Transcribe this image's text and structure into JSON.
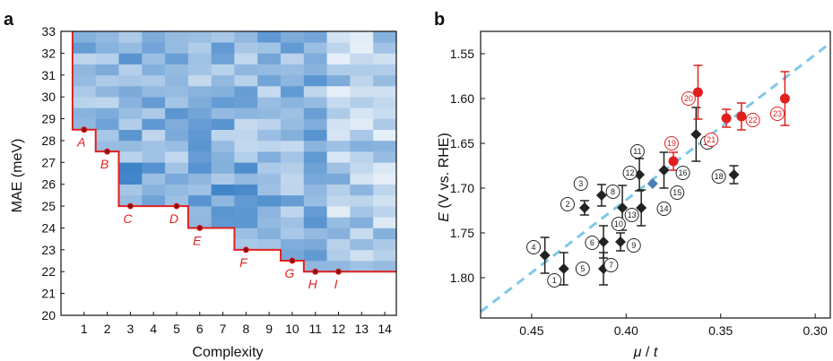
{
  "chart_data": [
    {
      "panel_label": "a",
      "type": "heatmap",
      "xlabel": "Complexity",
      "ylabel": "MAE (meV)",
      "x_ticks": [
        "1",
        "2",
        "3",
        "4",
        "5",
        "6",
        "7",
        "8",
        "9",
        "10",
        "11",
        "12",
        "13",
        "14"
      ],
      "y_ticks": [
        "20",
        "21",
        "22",
        "23",
        "24",
        "25",
        "26",
        "27",
        "28",
        "29",
        "30",
        "31",
        "32",
        "33"
      ],
      "xlim": [
        0,
        14.5
      ],
      "ylim": [
        20,
        33
      ],
      "colormap": [
        "#ffffff",
        "#1f6fc0"
      ],
      "frontier_color": "#e0201f",
      "frontier_step_x": [
        0.5,
        1.5,
        2.5,
        5.5,
        7.5,
        9.5,
        10.5,
        14.5
      ],
      "frontier_step_y": [
        28.5,
        27.5,
        25.0,
        24.0,
        23.0,
        22.5,
        22.0
      ],
      "frontier_start_y": 33,
      "pareto_points": [
        {
          "label": "A",
          "x": 1,
          "y": 28.5
        },
        {
          "label": "B",
          "x": 2,
          "y": 27.5
        },
        {
          "label": "C",
          "x": 3,
          "y": 25.0
        },
        {
          "label": "D",
          "x": 5,
          "y": 25.0
        },
        {
          "label": "E",
          "x": 6,
          "y": 24.0
        },
        {
          "label": "F",
          "x": 8,
          "y": 23.0
        },
        {
          "label": "G",
          "x": 10,
          "y": 22.5
        },
        {
          "label": "H",
          "x": 11,
          "y": 22.0
        },
        {
          "label": "I",
          "x": 12,
          "y": 22.0
        }
      ]
    },
    {
      "panel_label": "b",
      "type": "scatter",
      "xlabel_symbol_1": "μ",
      "xlabel_sep": " / ",
      "xlabel_symbol_2": "t",
      "ylabel_symbol": "E",
      "ylabel_rest": " (V vs. RHE)",
      "x_ticks": [
        "0.45",
        "0.40",
        "0.35",
        "0.30"
      ],
      "x_tick_values": [
        0.45,
        0.4,
        0.35,
        0.3
      ],
      "y_ticks": [
        "1.55",
        "1.60",
        "1.65",
        "1.70",
        "1.75",
        "1.80"
      ],
      "y_tick_values": [
        1.55,
        1.6,
        1.65,
        1.7,
        1.75,
        1.8
      ],
      "xlim": [
        0.477,
        0.292
      ],
      "ylim": [
        1.845,
        1.525
      ],
      "fit_line": {
        "color": "#7ec8e8",
        "x": [
          0.477,
          0.292
        ],
        "y": [
          1.838,
          1.538
        ]
      },
      "series": [
        {
          "marker": "diamond",
          "color": "#222222",
          "points": [
            {
              "x": 0.443,
              "y": 1.775,
              "err": 0.02
            },
            {
              "x": 0.433,
              "y": 1.79,
              "err": 0.018
            },
            {
              "x": 0.422,
              "y": 1.722,
              "err": 0.008
            },
            {
              "x": 0.413,
              "y": 1.708,
              "err": 0.012
            },
            {
              "x": 0.412,
              "y": 1.76,
              "err": 0.018
            },
            {
              "x": 0.412,
              "y": 1.79,
              "err": 0.018
            },
            {
              "x": 0.403,
              "y": 1.76,
              "err": 0.01
            },
            {
              "x": 0.402,
              "y": 1.722,
              "err": 0.025
            },
            {
              "x": 0.393,
              "y": 1.685,
              "err": 0.018
            },
            {
              "x": 0.392,
              "y": 1.722,
              "err": 0.02
            },
            {
              "x": 0.38,
              "y": 1.68,
              "err": 0.02
            },
            {
              "x": 0.363,
              "y": 1.64,
              "err": 0.03
            },
            {
              "x": 0.343,
              "y": 1.685,
              "err": 0.01
            }
          ]
        },
        {
          "marker": "diamond",
          "color": "#4a7fb5",
          "points": [
            {
              "x": 0.386,
              "y": 1.695,
              "err": 0.0
            }
          ]
        },
        {
          "marker": "circle",
          "color": "#e0201f",
          "points": [
            {
              "x": 0.375,
              "y": 1.67,
              "err": 0.01
            },
            {
              "x": 0.362,
              "y": 1.593,
              "err": 0.03
            },
            {
              "x": 0.347,
              "y": 1.622,
              "err": 0.01
            },
            {
              "x": 0.339,
              "y": 1.62,
              "err": 0.015
            },
            {
              "x": 0.316,
              "y": 1.6,
              "err": 0.03
            }
          ]
        }
      ],
      "number_labels": [
        {
          "text": "1",
          "x": 0.438,
          "y": 1.803,
          "red": false
        },
        {
          "text": "2",
          "x": 0.431,
          "y": 1.718,
          "red": false
        },
        {
          "text": "3",
          "x": 0.424,
          "y": 1.695,
          "red": false
        },
        {
          "text": "4",
          "x": 0.449,
          "y": 1.766,
          "red": false
        },
        {
          "text": "5",
          "x": 0.423,
          "y": 1.79,
          "red": false
        },
        {
          "text": "6",
          "x": 0.418,
          "y": 1.761,
          "red": false
        },
        {
          "text": "7",
          "x": 0.408,
          "y": 1.786,
          "red": false
        },
        {
          "text": "8",
          "x": 0.407,
          "y": 1.704,
          "red": false
        },
        {
          "text": "9",
          "x": 0.396,
          "y": 1.764,
          "red": false
        },
        {
          "text": "10",
          "x": 0.404,
          "y": 1.74,
          "red": false
        },
        {
          "text": "11",
          "x": 0.394,
          "y": 1.659,
          "red": false
        },
        {
          "text": "12",
          "x": 0.398,
          "y": 1.683,
          "red": false
        },
        {
          "text": "13",
          "x": 0.397,
          "y": 1.73,
          "red": false
        },
        {
          "text": "14",
          "x": 0.38,
          "y": 1.723,
          "red": false
        },
        {
          "text": "15",
          "x": 0.373,
          "y": 1.705,
          "red": false
        },
        {
          "text": "16",
          "x": 0.37,
          "y": 1.683,
          "red": false
        },
        {
          "text": "17",
          "x": 0.357,
          "y": 1.649,
          "red": false
        },
        {
          "text": "18",
          "x": 0.351,
          "y": 1.687,
          "red": false
        },
        {
          "text": "19",
          "x": 0.376,
          "y": 1.65,
          "red": true
        },
        {
          "text": "20",
          "x": 0.367,
          "y": 1.6,
          "red": true
        },
        {
          "text": "21",
          "x": 0.355,
          "y": 1.646,
          "red": true
        },
        {
          "text": "22",
          "x": 0.333,
          "y": 1.624,
          "red": true
        },
        {
          "text": "23",
          "x": 0.32,
          "y": 1.617,
          "red": true
        }
      ]
    }
  ]
}
